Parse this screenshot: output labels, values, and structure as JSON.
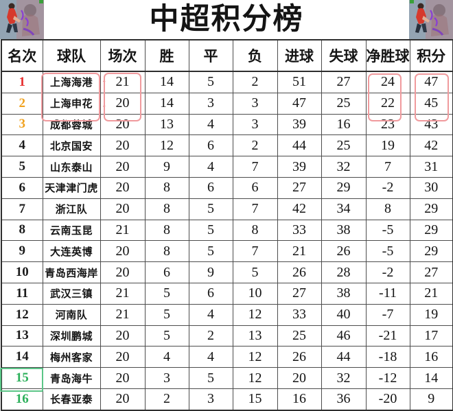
{
  "title": "中超积分榜",
  "icons": {
    "up": "↑",
    "down": "↓"
  },
  "colors": {
    "rank_red": "#e62e2e",
    "rank_gold": "#f0a11e",
    "rank_black": "#1a1a1a",
    "rank_green": "#2bb05a",
    "trend": "#dd2f2f",
    "annotation_box": "#f09a9d",
    "relegation_annotation_box": "#5bc587",
    "grid": "#4c4c4c"
  },
  "annotations": {
    "highlighted_regions": [
      "球队 rows 1-2 (上海海港 / 上海申花)",
      "场次 rows 1-2 (21 / 20)",
      "净胜球 rows 1-2 (24 / 22)",
      "积分 rows 1-2 (47 / 45)",
      "名次 row 15 (green box)"
    ]
  },
  "chart_data": {
    "type": "table",
    "title": "中超积分榜",
    "columns": [
      "名次",
      "球队",
      "场次",
      "胜",
      "平",
      "负",
      "进球",
      "失球",
      "净胜球",
      "积分"
    ],
    "rows": [
      {
        "rank": 1,
        "team": "上海海港",
        "played": 21,
        "won": 14,
        "drawn": 5,
        "lost": 2,
        "goals_for": 51,
        "goals_against": 27,
        "goal_diff": 24,
        "points": 47,
        "rank_color": "red",
        "trend": "up"
      },
      {
        "rank": 2,
        "team": "上海申花",
        "played": 20,
        "won": 14,
        "drawn": 3,
        "lost": 3,
        "goals_for": 47,
        "goals_against": 25,
        "goal_diff": 22,
        "points": 45,
        "rank_color": "gold",
        "trend": "down"
      },
      {
        "rank": 3,
        "team": "成都蓉城",
        "played": 20,
        "won": 13,
        "drawn": 4,
        "lost": 3,
        "goals_for": 39,
        "goals_against": 16,
        "goal_diff": 23,
        "points": 43,
        "rank_color": "gold",
        "trend": null
      },
      {
        "rank": 4,
        "team": "北京国安",
        "played": 20,
        "won": 12,
        "drawn": 6,
        "lost": 2,
        "goals_for": 44,
        "goals_against": 25,
        "goal_diff": 19,
        "points": 42,
        "rank_color": "black",
        "trend": null
      },
      {
        "rank": 5,
        "team": "山东泰山",
        "played": 20,
        "won": 9,
        "drawn": 4,
        "lost": 7,
        "goals_for": 39,
        "goals_against": 32,
        "goal_diff": 7,
        "points": 31,
        "rank_color": "black",
        "trend": null
      },
      {
        "rank": 6,
        "team": "天津津门虎",
        "played": 20,
        "won": 8,
        "drawn": 6,
        "lost": 6,
        "goals_for": 27,
        "goals_against": 29,
        "goal_diff": -2,
        "points": 30,
        "rank_color": "black",
        "trend": null
      },
      {
        "rank": 7,
        "team": "浙江队",
        "played": 20,
        "won": 8,
        "drawn": 5,
        "lost": 7,
        "goals_for": 42,
        "goals_against": 34,
        "goal_diff": 8,
        "points": 29,
        "rank_color": "black",
        "trend": null
      },
      {
        "rank": 8,
        "team": "云南玉昆",
        "played": 21,
        "won": 8,
        "drawn": 5,
        "lost": 8,
        "goals_for": 33,
        "goals_against": 38,
        "goal_diff": -5,
        "points": 29,
        "rank_color": "black",
        "trend": null
      },
      {
        "rank": 9,
        "team": "大连英博",
        "played": 20,
        "won": 8,
        "drawn": 5,
        "lost": 7,
        "goals_for": 21,
        "goals_against": 26,
        "goal_diff": -5,
        "points": 29,
        "rank_color": "black",
        "trend": null
      },
      {
        "rank": 10,
        "team": "青岛西海岸",
        "played": 20,
        "won": 6,
        "drawn": 9,
        "lost": 5,
        "goals_for": 26,
        "goals_against": 28,
        "goal_diff": -2,
        "points": 27,
        "rank_color": "black",
        "trend": null
      },
      {
        "rank": 11,
        "team": "武汉三镇",
        "played": 21,
        "won": 5,
        "drawn": 6,
        "lost": 10,
        "goals_for": 27,
        "goals_against": 38,
        "goal_diff": -11,
        "points": 21,
        "rank_color": "black",
        "trend": null
      },
      {
        "rank": 12,
        "team": "河南队",
        "played": 21,
        "won": 5,
        "drawn": 4,
        "lost": 12,
        "goals_for": 33,
        "goals_against": 40,
        "goal_diff": -7,
        "points": 19,
        "rank_color": "black",
        "trend": null
      },
      {
        "rank": 13,
        "team": "深圳鹏城",
        "played": 20,
        "won": 5,
        "drawn": 2,
        "lost": 13,
        "goals_for": 25,
        "goals_against": 46,
        "goal_diff": -21,
        "points": 17,
        "rank_color": "black",
        "trend": null
      },
      {
        "rank": 14,
        "team": "梅州客家",
        "played": 20,
        "won": 4,
        "drawn": 4,
        "lost": 12,
        "goals_for": 26,
        "goals_against": 44,
        "goal_diff": -18,
        "points": 16,
        "rank_color": "black",
        "trend": null
      },
      {
        "rank": 15,
        "team": "青岛海牛",
        "played": 20,
        "won": 3,
        "drawn": 5,
        "lost": 12,
        "goals_for": 20,
        "goals_against": 32,
        "goal_diff": -12,
        "points": 14,
        "rank_color": "green",
        "trend": null
      },
      {
        "rank": 16,
        "team": "长春亚泰",
        "played": 20,
        "won": 2,
        "drawn": 3,
        "lost": 15,
        "goals_for": 16,
        "goals_against": 36,
        "goal_diff": -20,
        "points": 9,
        "rank_color": "green",
        "trend": null
      }
    ]
  }
}
